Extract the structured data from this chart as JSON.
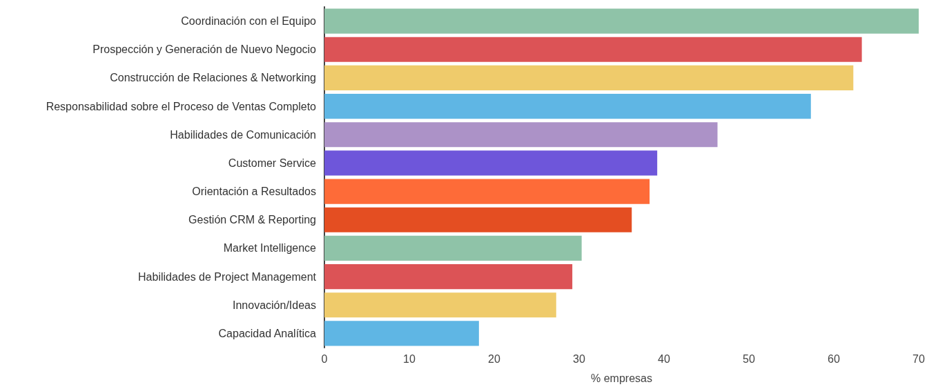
{
  "chart_data": {
    "type": "bar",
    "orientation": "horizontal",
    "xlabel": "% empresas",
    "categories": [
      "Coordinación con el Equipo",
      "Prospección y Generación de Nuevo Negocio",
      "Construcción de Relaciones & Networking",
      "Responsabilidad sobre el Proceso de Ventas Completo",
      "Habilidades de Comunicación",
      "Customer Service",
      "Orientación a Resultados",
      "Gestión CRM & Reporting",
      "Market Intelligence",
      "Habilidades de Project Management",
      "Innovación/Ideas",
      "Capacidad Analítica"
    ],
    "values": [
      70,
      63.3,
      62.3,
      57.3,
      46.3,
      39.2,
      38.3,
      36.2,
      30.3,
      29.2,
      27.3,
      18.2
    ],
    "colors": [
      "#8fc3a8",
      "#dc5356",
      "#efcb6b",
      "#5fb6e4",
      "#ac92c7",
      "#6e56da",
      "#fe6b38",
      "#e44e22",
      "#8fc3a8",
      "#dc5356",
      "#efcb6b",
      "#5fb6e4"
    ],
    "xlim": [
      0,
      70
    ],
    "xticks": [
      0,
      10,
      20,
      30,
      40,
      50,
      60,
      70
    ],
    "grid": false
  }
}
